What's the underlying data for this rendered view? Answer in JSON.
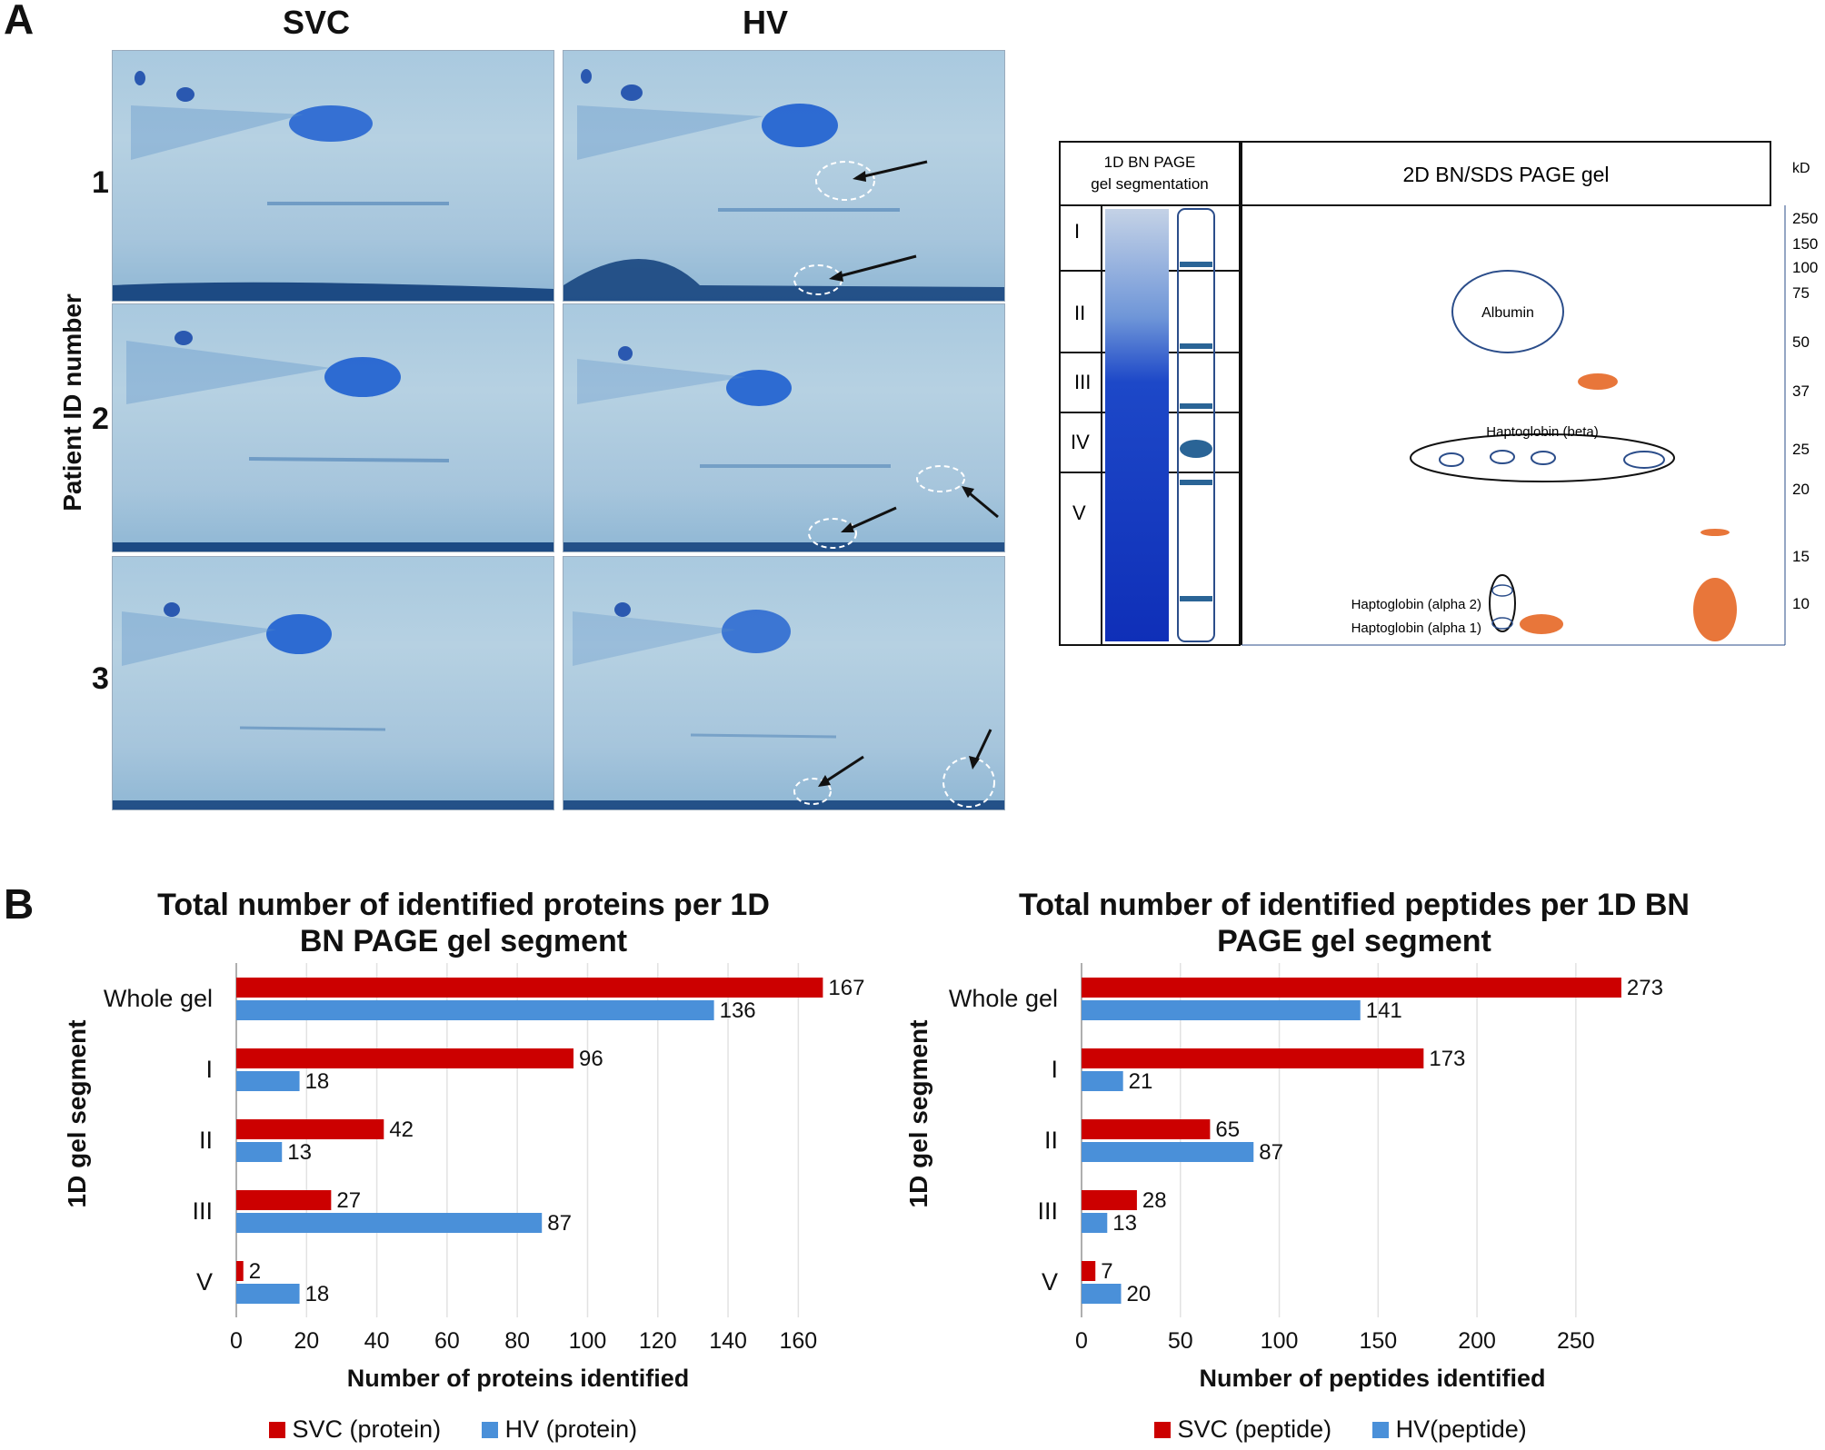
{
  "panelA": {
    "letter": "A",
    "col_svc": "SVC",
    "col_hv": "HV",
    "row_labels": [
      "1",
      "2",
      "3"
    ],
    "y_label": "Patient ID number"
  },
  "schematic": {
    "left_header": "1D BN PAGE gel segmentation",
    "right_header": "2D BN/SDS PAGE gel",
    "kd_label": "kD",
    "segments": [
      "I",
      "II",
      "III",
      "IV",
      "V"
    ],
    "kd_ticks": [
      "250",
      "150",
      "100",
      "75",
      "50",
      "37",
      "25",
      "20",
      "15",
      "10"
    ],
    "labels": {
      "albumin": "Albumin",
      "hp_beta": "Haptoglobin (beta)",
      "hp_alpha2": "Haptoglobin (alpha 2)",
      "hp_alpha1": "Haptoglobin (alpha 1)"
    },
    "colors": {
      "spot": "#e8763a",
      "band": "#2a6496",
      "outline": "#2b4d8a"
    }
  },
  "panelB": {
    "letter": "B"
  },
  "chart_data": [
    {
      "type": "bar",
      "orientation": "horizontal",
      "title": "Total number of identified proteins per 1D BN PAGE gel segment",
      "title_lines": [
        "Total number of identified proteins per 1D",
        "BN PAGE gel segment"
      ],
      "categories": [
        "Whole gel",
        "I",
        "II",
        "III",
        "V"
      ],
      "series": [
        {
          "name": "SVC (protein)",
          "color": "#cc0000",
          "values": [
            167,
            96,
            42,
            27,
            2
          ]
        },
        {
          "name": "HV (protein)",
          "color": "#4a90d9",
          "values": [
            136,
            18,
            13,
            87,
            18
          ]
        }
      ],
      "xlabel": "Number of proteins identified",
      "ylabel": "1D gel segment",
      "xlim": [
        0,
        170
      ],
      "xticks": [
        0,
        20,
        40,
        60,
        80,
        100,
        120,
        140,
        160
      ],
      "grid": true
    },
    {
      "type": "bar",
      "orientation": "horizontal",
      "title": "Total number of identified peptides per 1D BN PAGE gel segment",
      "title_lines": [
        "Total number of identified peptides per 1D BN",
        "PAGE gel segment"
      ],
      "categories": [
        "Whole gel",
        "I",
        "II",
        "III",
        "V"
      ],
      "series": [
        {
          "name": "SVC (peptide)",
          "color": "#cc0000",
          "values": [
            273,
            173,
            65,
            28,
            7
          ]
        },
        {
          "name": "HV(peptide)",
          "color": "#4a90d9",
          "values": [
            141,
            21,
            87,
            13,
            20
          ]
        }
      ],
      "xlabel": "Number of peptides identified",
      "ylabel": "1D gel segment",
      "xlim": [
        0,
        285
      ],
      "xticks": [
        0,
        50,
        100,
        150,
        200,
        250
      ],
      "grid": true
    }
  ]
}
